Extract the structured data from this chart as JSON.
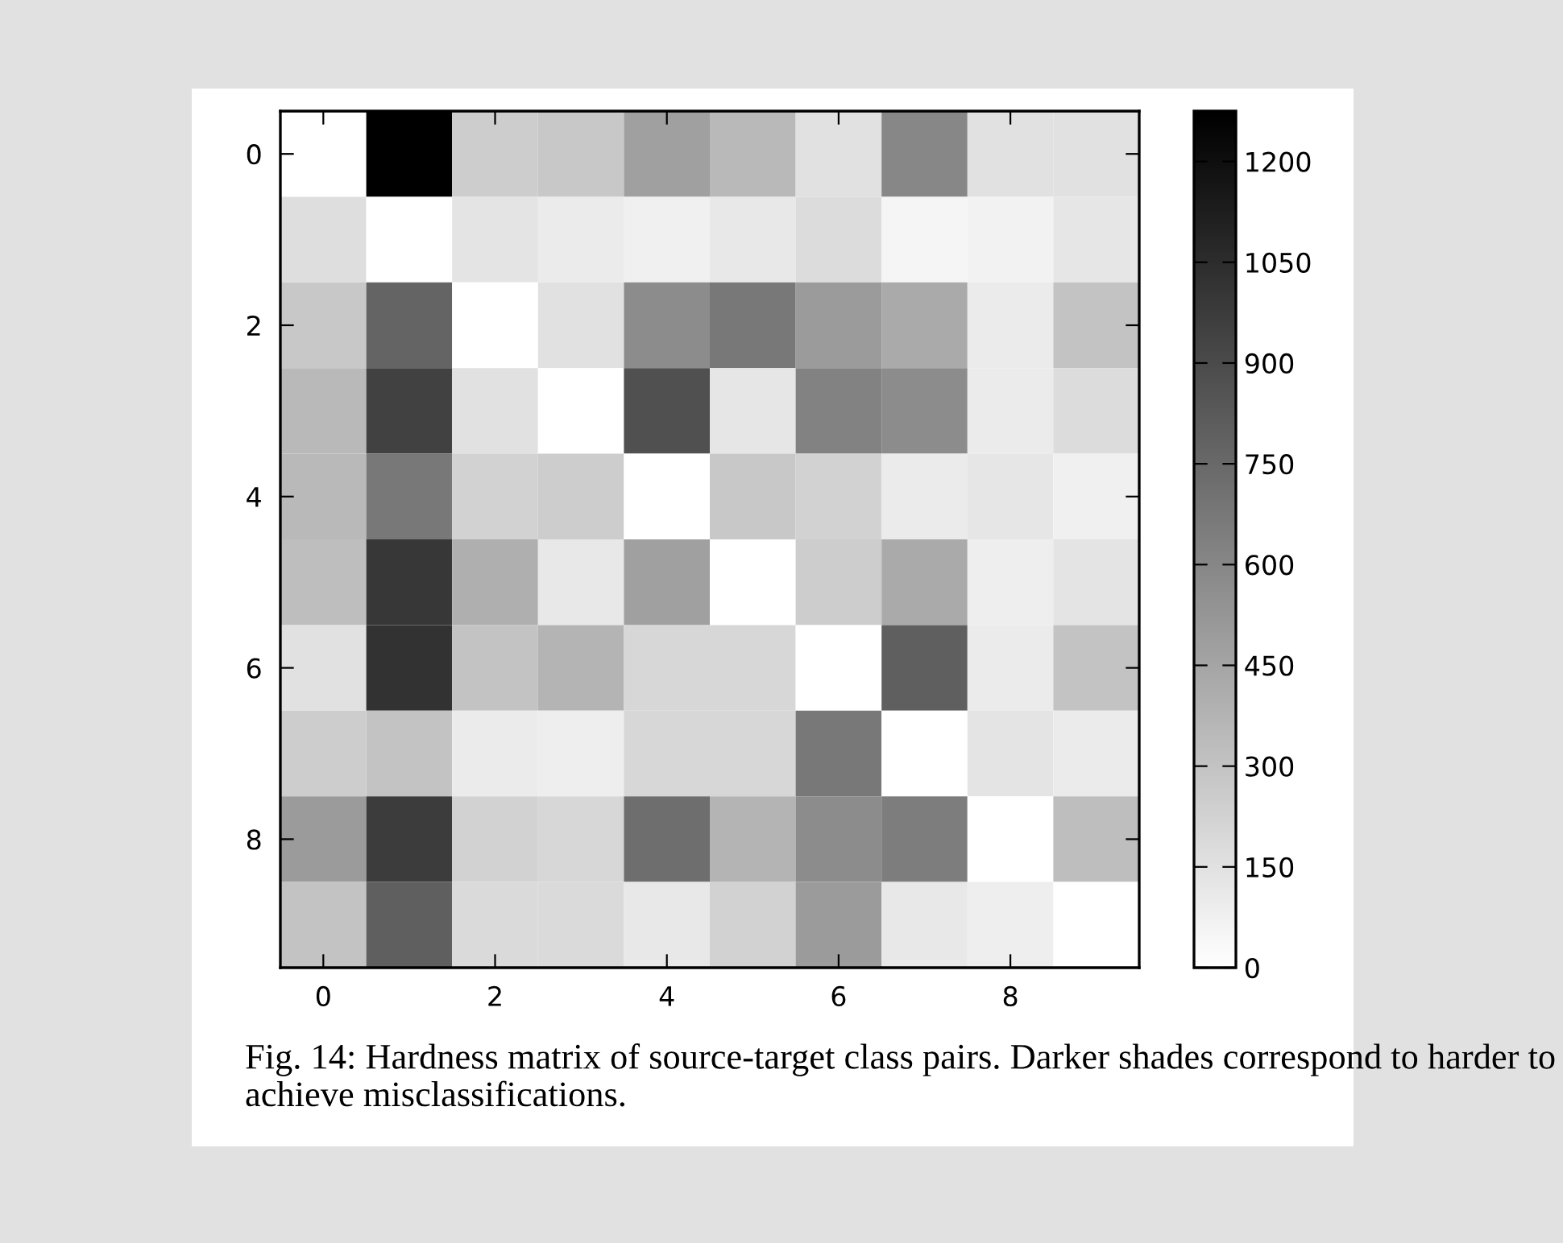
{
  "chart_data": {
    "type": "heatmap",
    "categories": [
      "0",
      null,
      "2",
      null,
      "4",
      null,
      "6",
      null,
      "8",
      null
    ],
    "y_categories": [
      "0",
      null,
      "2",
      null,
      "4",
      null,
      "6",
      null,
      "8",
      null
    ],
    "cells": [
      [
        0,
        1275,
        250,
        275,
        475,
        350,
        150,
        600,
        150,
        150
      ],
      [
        165,
        0,
        135,
        100,
        75,
        115,
        175,
        50,
        65,
        125
      ],
      [
        275,
        775,
        0,
        150,
        575,
        675,
        500,
        425,
        100,
        300
      ],
      [
        350,
        950,
        150,
        0,
        875,
        125,
        625,
        575,
        100,
        175
      ],
      [
        350,
        675,
        225,
        250,
        0,
        275,
        225,
        100,
        125,
        75
      ],
      [
        325,
        1000,
        400,
        115,
        475,
        0,
        250,
        425,
        85,
        135
      ],
      [
        150,
        1025,
        300,
        375,
        200,
        200,
        0,
        800,
        100,
        300
      ],
      [
        250,
        300,
        100,
        85,
        200,
        200,
        675,
        0,
        135,
        100
      ],
      [
        500,
        975,
        225,
        200,
        725,
        375,
        575,
        650,
        0,
        325
      ],
      [
        300,
        800,
        185,
        185,
        115,
        225,
        500,
        115,
        85,
        0
      ]
    ],
    "clim": [
      0,
      1275
    ],
    "cticks": [
      0,
      150,
      300,
      450,
      600,
      750,
      900,
      1050,
      1200
    ],
    "annotations": [
      "Fig. 14: Hardness matrix of source-target class pairs. Darker shades correspond to harder to achieve misclassifications."
    ]
  }
}
